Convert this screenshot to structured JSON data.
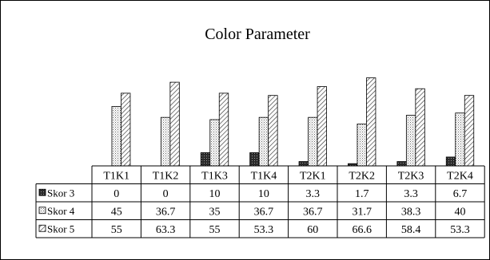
{
  "chart_data": {
    "type": "bar",
    "title": "Color Parameter",
    "categories": [
      "T1K1",
      "T1K2",
      "T1K3",
      "T1K4",
      "T2K1",
      "T2K2",
      "T2K3",
      "T2K4"
    ],
    "series": [
      {
        "name": "Skor 3",
        "values": [
          0,
          0,
          10,
          10,
          3.3,
          1.7,
          3.3,
          6.7
        ],
        "labels": [
          "0",
          "0",
          "10",
          "10",
          "3.3",
          "1.7",
          "3.3",
          "6.7"
        ],
        "pattern": "dark-dotted"
      },
      {
        "name": "Skor 4",
        "values": [
          45,
          36.7,
          35,
          36.7,
          36.7,
          31.7,
          38.3,
          40
        ],
        "labels": [
          "45",
          "36.7",
          "35",
          "36.7",
          "36.7",
          "31.7",
          "38.3",
          "40"
        ],
        "pattern": "light-dotted"
      },
      {
        "name": "Skor 5",
        "values": [
          55,
          63.3,
          55,
          53.3,
          60,
          66.6,
          58.4,
          53.3
        ],
        "labels": [
          "55",
          "63.3",
          "55",
          "53.3",
          "60",
          "66.6",
          "58.4",
          "53.3"
        ],
        "pattern": "diagonal-hatch"
      }
    ],
    "ylim": [
      0,
      70
    ],
    "grid": false,
    "legend": "data-table"
  }
}
